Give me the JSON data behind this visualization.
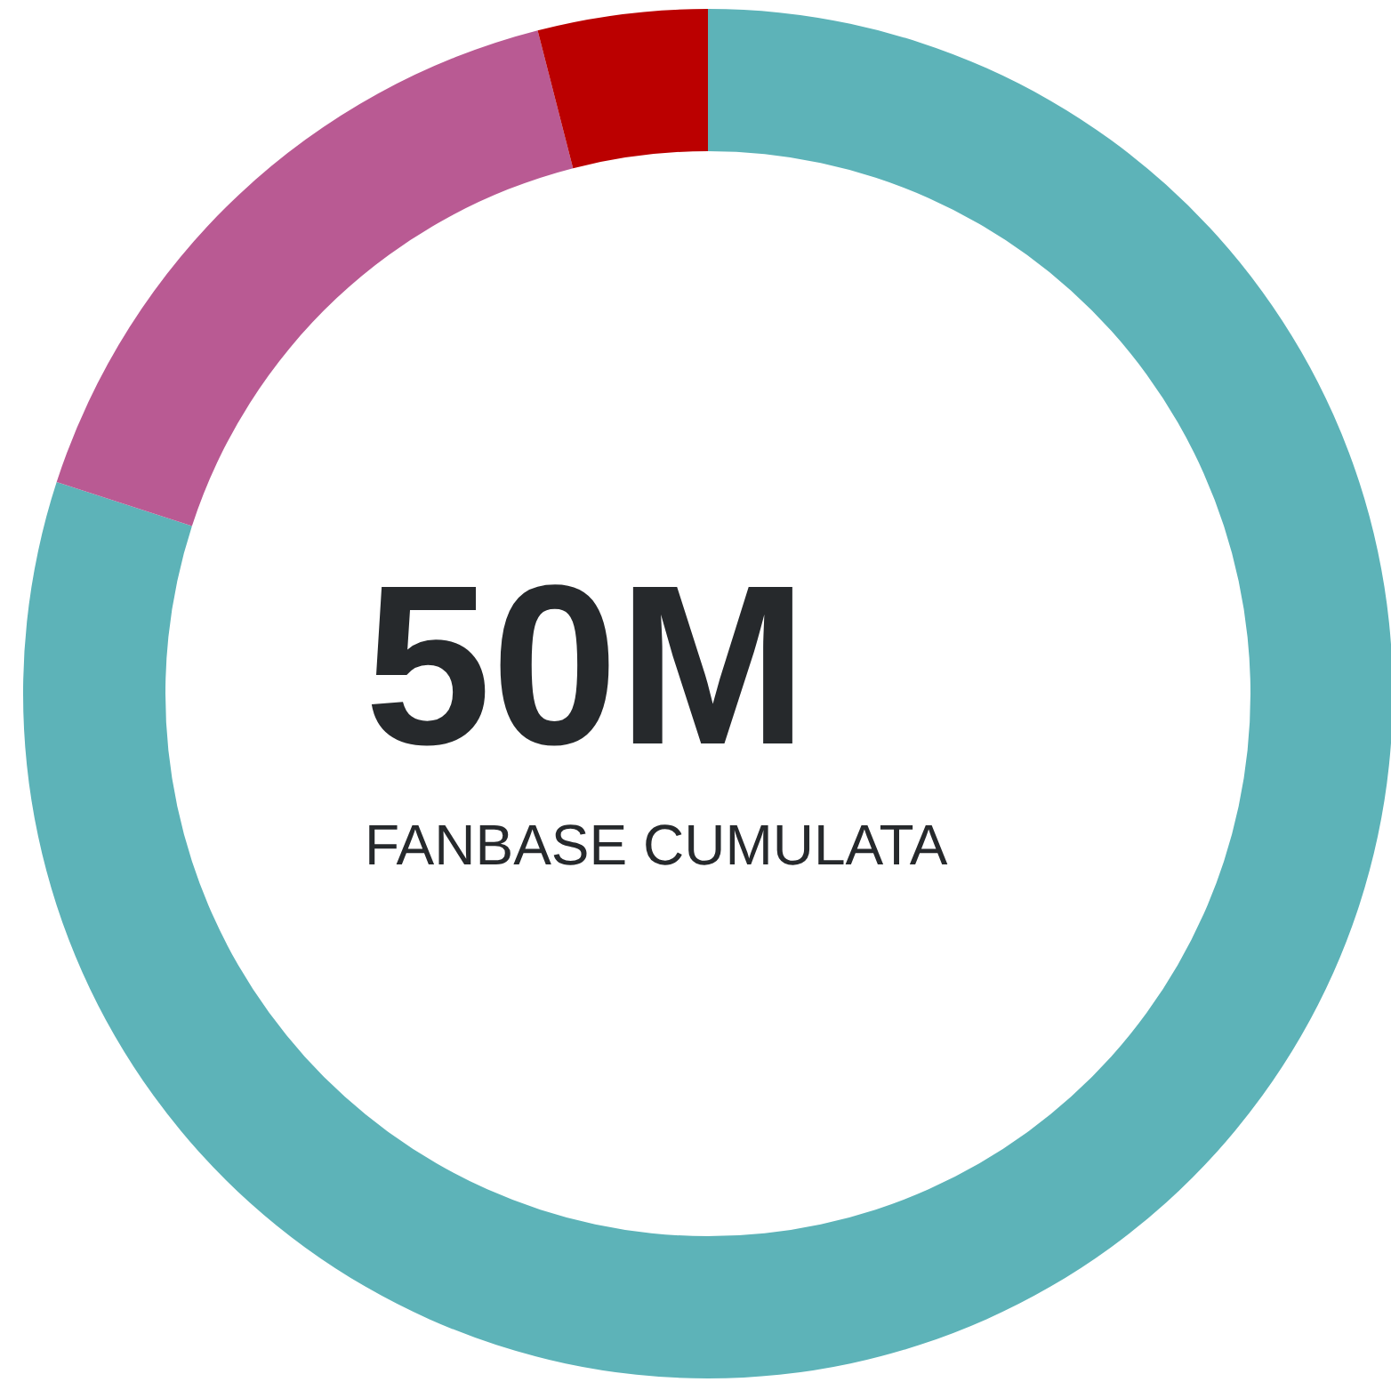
{
  "chart_data": {
    "type": "donut",
    "categories": [
      null,
      null,
      null
    ],
    "values": [
      80,
      16,
      4
    ],
    "colors": [
      "#5db3b8",
      "#b95a93",
      "#bb0000"
    ],
    "annotations": [
      "50M",
      "FANBASE CUMULATA"
    ]
  }
}
